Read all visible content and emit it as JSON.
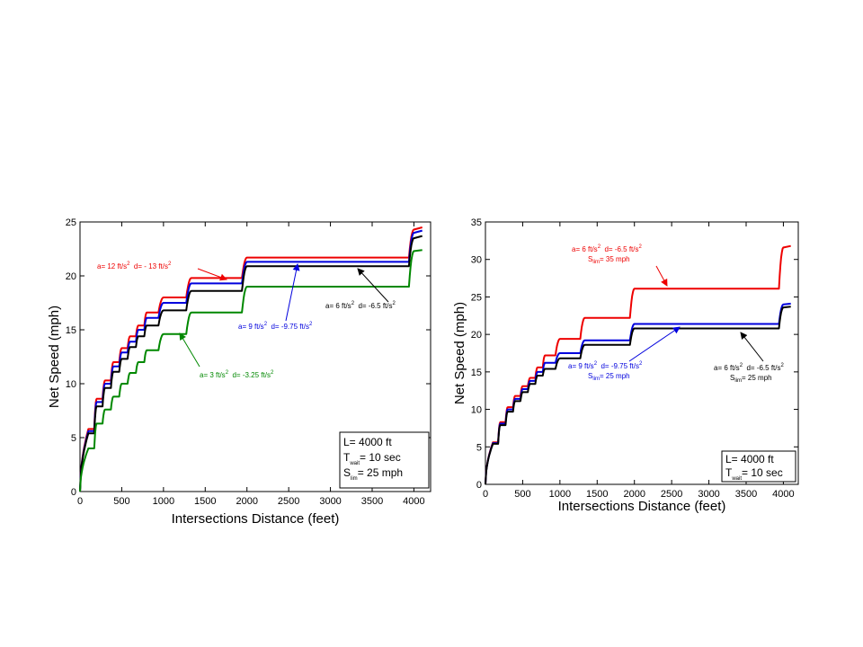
{
  "colors": {
    "red": "#ee0000",
    "blue": "#0000dd",
    "black": "#000000",
    "green": "#008800"
  },
  "chart_data": [
    {
      "type": "line",
      "xlabel": "Intersections Distance (feet)",
      "ylabel": "Net Speed (mph)",
      "xlim": [
        0,
        4200
      ],
      "ylim": [
        0,
        25
      ],
      "xticks": [
        "0",
        "500",
        "1000",
        "1500",
        "2000",
        "2500",
        "3000",
        "3500",
        "4000"
      ],
      "yticks": [
        "0",
        "5",
        "10",
        "15",
        "20",
        "25"
      ],
      "grid": false,
      "series": [
        {
          "color": "red",
          "x": [
            0,
            100,
            200,
            300,
            400,
            500,
            600,
            700,
            800,
            1000,
            1333,
            2000,
            3800,
            4000,
            4100
          ],
          "y": [
            0,
            5.8,
            8.6,
            10.3,
            12.0,
            13.3,
            14.4,
            15.4,
            16.6,
            18.0,
            19.8,
            21.7,
            21.7,
            24.3,
            24.5
          ]
        },
        {
          "color": "blue",
          "x": [
            0,
            100,
            200,
            300,
            400,
            500,
            600,
            700,
            800,
            1000,
            1333,
            2000,
            3800,
            4000,
            4100
          ],
          "y": [
            0,
            5.6,
            8.3,
            10.0,
            11.6,
            12.9,
            13.9,
            15.0,
            16.1,
            17.5,
            19.3,
            21.3,
            21.3,
            24.0,
            24.2
          ]
        },
        {
          "color": "black",
          "x": [
            0,
            100,
            200,
            300,
            400,
            500,
            600,
            700,
            800,
            1000,
            1333,
            2000,
            3800,
            4000,
            4100
          ],
          "y": [
            0,
            5.4,
            7.9,
            9.6,
            11.1,
            12.3,
            13.4,
            14.4,
            15.4,
            16.8,
            18.6,
            20.9,
            20.9,
            23.5,
            23.7
          ]
        },
        {
          "color": "green",
          "x": [
            0,
            100,
            200,
            300,
            400,
            500,
            600,
            700,
            800,
            1000,
            1333,
            2000,
            3800,
            4000,
            4100
          ],
          "y": [
            0,
            4.0,
            6.3,
            7.6,
            8.8,
            10.0,
            11.0,
            12.0,
            13.1,
            14.6,
            16.6,
            19.0,
            19.0,
            22.3,
            22.4
          ]
        }
      ],
      "annotations": [
        {
          "color": "red",
          "base": "a= 12 ft/s",
          "sup": "2",
          "mid": "  d= - 13 ft/s",
          "sup2": "2"
        },
        {
          "color": "black",
          "base": "a= 6 ft/s",
          "sup": "2",
          "mid": "  d= -6.5 ft/s",
          "sup2": "2"
        },
        {
          "color": "blue",
          "base": "a= 9 ft/s",
          "sup": "2",
          "mid": "  d= -9.75 ft/s",
          "sup2": "2"
        },
        {
          "color": "green",
          "base": "a= 3 ft/s",
          "sup": "2",
          "mid": "  d= -3.25 ft/s",
          "sup2": "2"
        }
      ],
      "legend_box": [
        {
          "main": "L= 4000 ft",
          "sub": "",
          "rest": ""
        },
        {
          "main": "T",
          "sub": "wait",
          "rest": "= 10 sec"
        },
        {
          "main": "S",
          "sub": "lim",
          "rest": "= 25 mph"
        }
      ]
    },
    {
      "type": "line",
      "xlabel": "Intersections Distance (feet)",
      "ylabel": "Net Speed (mph)",
      "xlim": [
        0,
        4200
      ],
      "ylim": [
        0,
        35
      ],
      "xticks": [
        "0",
        "500",
        "1000",
        "1500",
        "2000",
        "2500",
        "3000",
        "3500",
        "4000"
      ],
      "yticks": [
        "0",
        "5",
        "10",
        "15",
        "20",
        "25",
        "30",
        "35"
      ],
      "grid": false,
      "series": [
        {
          "color": "red",
          "x": [
            0,
            100,
            200,
            300,
            400,
            500,
            600,
            700,
            800,
            1000,
            1333,
            2000,
            3800,
            4000,
            4100
          ],
          "y": [
            0,
            5.6,
            8.3,
            10.3,
            11.8,
            13.1,
            14.2,
            15.6,
            17.2,
            19.4,
            22.2,
            26.1,
            26.1,
            31.6,
            31.8
          ]
        },
        {
          "color": "blue",
          "x": [
            0,
            100,
            200,
            300,
            400,
            500,
            600,
            700,
            800,
            1000,
            1333,
            2000,
            3800,
            4000,
            4100
          ],
          "y": [
            0,
            5.5,
            8.1,
            10.0,
            11.4,
            12.7,
            13.8,
            15.0,
            16.2,
            17.5,
            19.2,
            21.4,
            21.4,
            24.0,
            24.1
          ]
        },
        {
          "color": "black",
          "x": [
            0,
            100,
            200,
            300,
            400,
            500,
            600,
            700,
            800,
            1000,
            1333,
            2000,
            3800,
            4000,
            4100
          ],
          "y": [
            0,
            5.4,
            7.9,
            9.7,
            11.1,
            12.3,
            13.4,
            14.5,
            15.4,
            16.8,
            18.6,
            20.8,
            20.8,
            23.6,
            23.7
          ]
        }
      ],
      "annotations": [
        {
          "color": "red",
          "base": "a= 6 ft/s",
          "sup": "2",
          "mid": "  d= -6.5 ft/s",
          "sup2": "2",
          "line2_main": "S",
          "line2_sub": "lim",
          "line2_rest": "= 35 mph"
        },
        {
          "color": "blue",
          "base": "a= 9 ft/s",
          "sup": "2",
          "mid": "  d= -9.75 ft/s",
          "sup2": "2",
          "line2_main": "S",
          "line2_sub": "lim",
          "line2_rest": "= 25 mph"
        },
        {
          "color": "black",
          "base": "a= 6 ft/s",
          "sup": "2",
          "mid": "  d= -6.5 ft/s",
          "sup2": "2",
          "line2_main": "S",
          "line2_sub": "lim",
          "line2_rest": "= 25 mph"
        }
      ],
      "legend_box": [
        {
          "main": "L= 4000 ft",
          "sub": "",
          "rest": ""
        },
        {
          "main": "T",
          "sub": "wait",
          "rest": "= 10 sec"
        }
      ]
    }
  ]
}
